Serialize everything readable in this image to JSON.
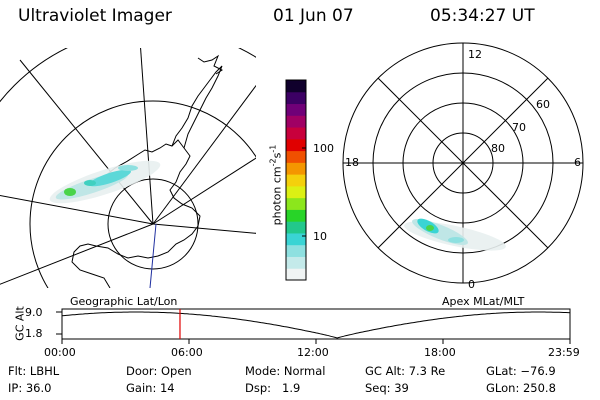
{
  "header": {
    "instrument": "Ultraviolet Imager",
    "date": "01 Jun 07",
    "time": "05:34:27 UT"
  },
  "left_panel": {
    "label": "Geographic Lat/Lon"
  },
  "right_panel": {
    "label": "Apex MLat/MLT",
    "mlt_labels": [
      "12",
      "18",
      "6",
      "0"
    ],
    "mlat_labels": [
      "60",
      "70",
      "80"
    ]
  },
  "colorbar": {
    "unit_label": "photon cm",
    "unit_exp1": "-2",
    "unit_mid": "s",
    "unit_exp2": "-1",
    "ticks": [
      "100",
      "10"
    ],
    "colors": [
      "#f0f4f4",
      "#c4eaea",
      "#8ee0e0",
      "#3ad4d4",
      "#22c88c",
      "#28d428",
      "#8ce61c",
      "#dcf014",
      "#f4d00c",
      "#f49600",
      "#f05000",
      "#e00000",
      "#c8003c",
      "#a00064",
      "#700078",
      "#3c0064",
      "#10002c"
    ]
  },
  "orbit_plot": {
    "ylabel": "GC Alt",
    "y_ticks": [
      "9.0",
      "1.8"
    ],
    "x_ticks": [
      "00:00",
      "06:00",
      "12:00",
      "18:00",
      "23:59"
    ],
    "current_time_hours": 5.574
  },
  "info": {
    "flt_label": "Flt:",
    "flt_value": "LBHL",
    "ip_label": "IP:",
    "ip_value": "36.0",
    "door_label": "Door:",
    "door_value": "Open",
    "gain_label": "Gain:",
    "gain_value": "14",
    "mode_label": "Mode:",
    "mode_value": "Normal",
    "dsp_label": "Dsp:",
    "dsp_value": "1.9",
    "gcalt_label": "GC Alt:",
    "gcalt_value": "7.3 Re",
    "seq_label": "Seq:",
    "seq_value": "39",
    "glat_label": "GLat:",
    "glat_value": "−76.9",
    "glon_label": "GLon:",
    "glon_value": "250.8"
  }
}
